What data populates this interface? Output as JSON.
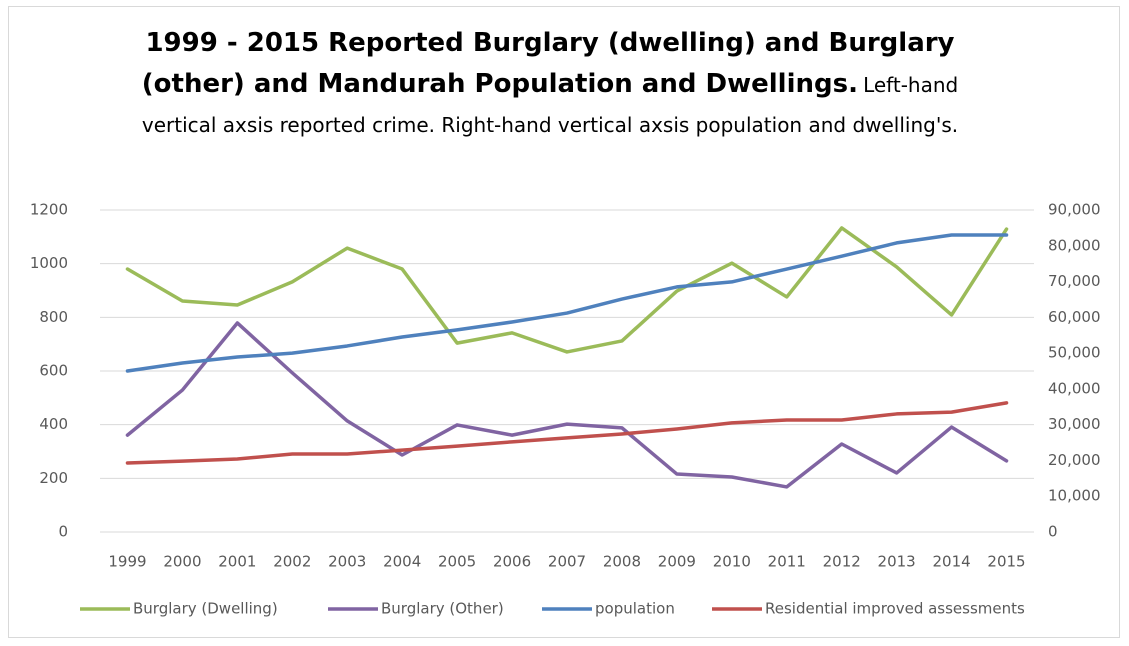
{
  "chart_data": {
    "type": "line",
    "title": "1999 - 2015 Reported Burglary (dwelling) and Burglary (other) and Mandurah Population and Dwellings.",
    "subtitle": "Left-hand vertical axsis reported crime. Right-hand vertical axsis population and dwelling's.",
    "categories": [
      "1999",
      "2000",
      "2001",
      "2002",
      "2003",
      "2004",
      "2005",
      "2006",
      "2007",
      "2008",
      "2009",
      "2010",
      "2011",
      "2012",
      "2013",
      "2014",
      "2015"
    ],
    "series": [
      {
        "name": "Burglary (Dwelling)",
        "color": "#9bbb59",
        "values": [
          980,
          861,
          846,
          932,
          1058,
          980,
          704,
          742,
          671,
          712,
          898,
          1002,
          876,
          1133,
          988,
          809,
          1129
        ]
      },
      {
        "name": "Burglary (Other)",
        "color": "#8064a2",
        "values": [
          361,
          529,
          779,
          593,
          414,
          287,
          399,
          361,
          402,
          388,
          216,
          205,
          168,
          328,
          220,
          391,
          265
        ]
      },
      {
        "name": "population",
        "color": "#4f81bd",
        "axis": "y2",
        "values": [
          45000,
          47240,
          48900,
          50000,
          52000,
          54500,
          56500,
          58700,
          61200,
          65100,
          68500,
          69900,
          73500,
          77100,
          80800,
          83000,
          83000
        ]
      },
      {
        "name": "Residential improved assessments",
        "color": "#c0504d",
        "axis": "y2",
        "values": [
          19300,
          19800,
          20400,
          21800,
          21800,
          22900,
          24000,
          25200,
          26300,
          27400,
          28800,
          30500,
          31300,
          31300,
          33000,
          33500,
          36100
        ]
      }
    ],
    "ylim": [
      0,
      1200
    ],
    "yticks": [
      0,
      200,
      400,
      600,
      800,
      1000,
      1200
    ],
    "y2lim": [
      0,
      90000
    ],
    "y2ticks": [
      0,
      {
        "value": 10000,
        "label": "10,000"
      },
      {
        "value": 20000,
        "label": "20,000"
      },
      {
        "value": 30000,
        "label": "30,000"
      },
      {
        "value": 40000,
        "label": "40,000"
      },
      {
        "value": 50000,
        "label": "50,000"
      },
      {
        "value": 60000,
        "label": "60,000"
      },
      {
        "value": 70000,
        "label": "70,000"
      },
      {
        "value": 80000,
        "label": "80,000"
      },
      {
        "value": 90000,
        "label": "90,000"
      }
    ],
    "grid": true,
    "legend": "bottom"
  }
}
